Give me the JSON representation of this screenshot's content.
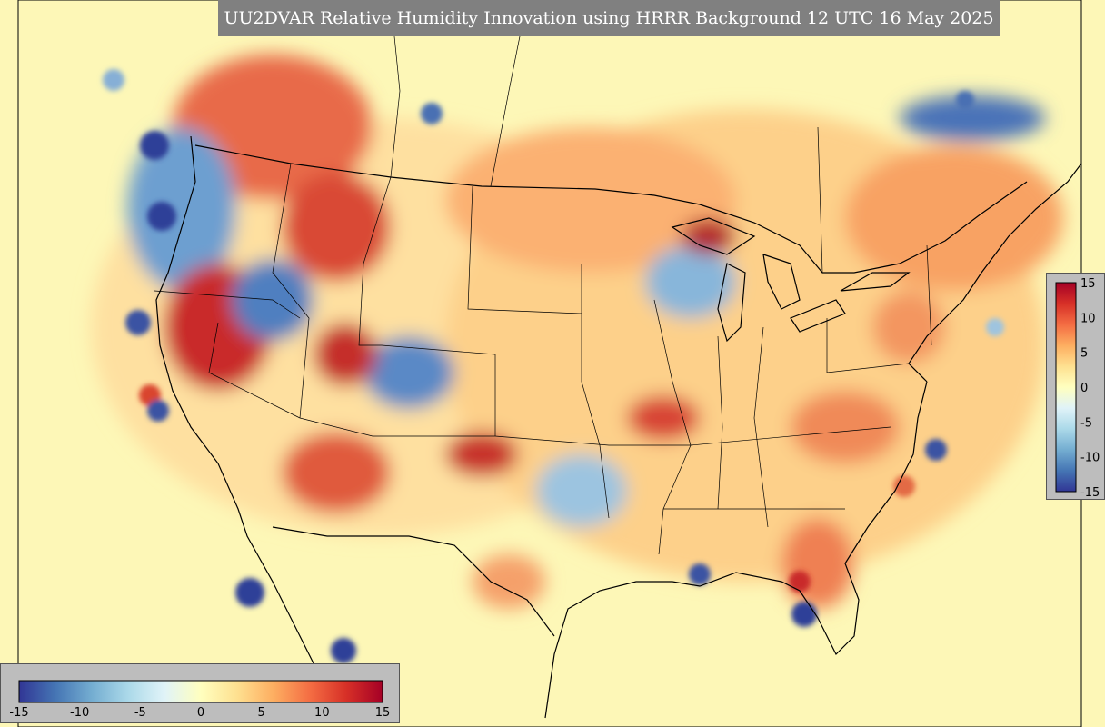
{
  "title": "UU2DVAR Relative Humidity Innovation using HRRR Background 12 UTC 16 May 2025",
  "colorbar": {
    "vmin": -15,
    "vmax": 15,
    "ticks": [
      "15",
      "10",
      "5",
      "0",
      "-5",
      "-10",
      "-15"
    ],
    "tick_values": [
      15,
      10,
      5,
      0,
      -5,
      -10,
      -15
    ],
    "colors": [
      "#313695",
      "#4575b4",
      "#74add1",
      "#abd9e9",
      "#e0f3f8",
      "#ffffbf",
      "#fee090",
      "#fdae61",
      "#f46d43",
      "#d73027",
      "#a50026"
    ]
  },
  "colors": {
    "background_field": "#fdf7b7",
    "borders": "#000000",
    "panel": "#bdbdbd",
    "title_bar": "#808080"
  }
}
